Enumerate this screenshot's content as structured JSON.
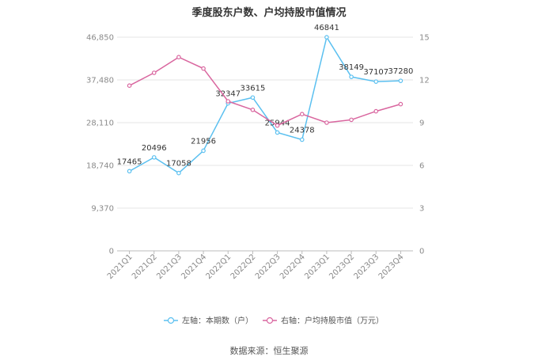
{
  "chart_data": {
    "type": "line",
    "title": "季度股东户数、户均持股市值情况",
    "categories": [
      "2021Q1",
      "2021Q2",
      "2021Q3",
      "2021Q4",
      "2022Q1",
      "2022Q2",
      "2022Q3",
      "2022Q4",
      "2023Q1",
      "2023Q2",
      "2023Q3",
      "2023Q4"
    ],
    "left_axis": {
      "ticks": [
        "0",
        "9,370",
        "18,740",
        "28,110",
        "37,480",
        "46,850"
      ],
      "ylim": [
        0,
        46850
      ]
    },
    "right_axis": {
      "ticks": [
        "0",
        "3",
        "6",
        "9",
        "12",
        "15"
      ],
      "ylim": [
        0,
        15
      ]
    },
    "series": [
      {
        "name": "左轴：本期数（户）",
        "axis": "left",
        "color": "#5bc0f0",
        "values": [
          17465,
          20496,
          17058,
          21956,
          32347,
          33615,
          25944,
          24378,
          46841,
          38149,
          37107,
          37280
        ],
        "labels": [
          "17465",
          "20496",
          "17058",
          "21956",
          "32347",
          "33615",
          "25944",
          "24378",
          "46841",
          "38149",
          "37107",
          "37280"
        ]
      },
      {
        "name": "右轴：户均持股市值（万元）",
        "axis": "right",
        "color": "#d9669f",
        "values": [
          11.6,
          12.5,
          13.6,
          12.8,
          10.5,
          9.9,
          8.8,
          9.6,
          9.0,
          9.2,
          9.8,
          10.3
        ]
      }
    ],
    "grid": true,
    "legend": "bottom-center"
  },
  "source": "数据来源：恒生聚源"
}
